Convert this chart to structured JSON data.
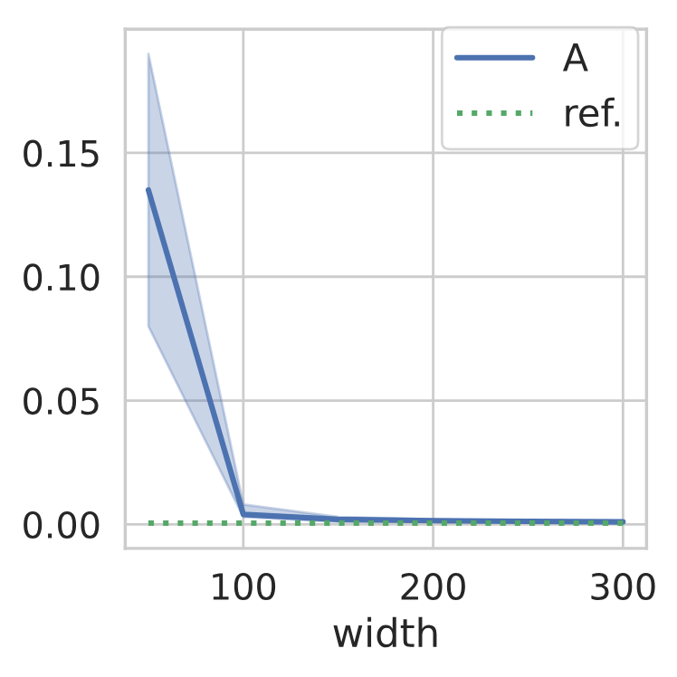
{
  "chart_data": {
    "type": "line",
    "xlabel": "width",
    "x": [
      50,
      100,
      150,
      200,
      250,
      300
    ],
    "series": [
      {
        "name": "A",
        "color": "#4c72b0",
        "line_style": "solid",
        "values": [
          0.135,
          0.004,
          0.002,
          0.0015,
          0.0012,
          0.001
        ],
        "lower": [
          0.08,
          0.003,
          0.001,
          0.001,
          0.0008,
          0.0007
        ],
        "upper": [
          0.19,
          0.008,
          0.003,
          0.002,
          0.0016,
          0.0014
        ]
      },
      {
        "name": "ref.",
        "color": "#55a868",
        "line_style": "dotted",
        "values": [
          0.0005,
          0.0005,
          0.0005,
          0.0005,
          0.0005,
          0.0005
        ]
      }
    ],
    "xlim": [
      37.8,
      312.4
    ],
    "xticks": [
      100,
      200,
      300
    ],
    "ylim": [
      -0.0097,
      0.2
    ],
    "yticks": [
      {
        "value": 0,
        "label": "0.00"
      },
      {
        "value": 0.05,
        "label": "0.05"
      },
      {
        "value": 0.1,
        "label": "0.10"
      },
      {
        "value": 0.15,
        "label": "0.15"
      }
    ],
    "grid": true,
    "legend": "top right"
  }
}
